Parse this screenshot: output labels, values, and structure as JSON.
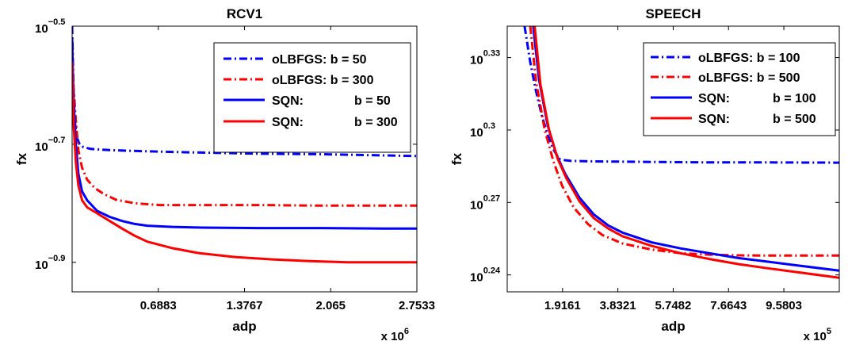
{
  "chart_data": [
    {
      "type": "line",
      "title": "RCV1",
      "xlabel": "adp",
      "ylabel": "fx",
      "x_multiplier": {
        "base": "x 10",
        "exponent": "6"
      },
      "xlim": [
        0,
        2.7533
      ],
      "ylim_log10": [
        -0.95,
        -0.5
      ],
      "log_y": true,
      "grid": false,
      "legend_position": "top-right",
      "xticks": [
        {
          "value": 0.6883,
          "label": "0.6883"
        },
        {
          "value": 1.3767,
          "label": "1.3767"
        },
        {
          "value": 2.065,
          "label": "2.065"
        },
        {
          "value": 2.7533,
          "label": "2.7533"
        }
      ],
      "yticks": [
        {
          "value_log10": -0.5,
          "base": "10",
          "exp": "−0.5"
        },
        {
          "value_log10": -0.7,
          "base": "10",
          "exp": "−0.7"
        },
        {
          "value_log10": -0.9,
          "base": "10",
          "exp": "−0.9"
        }
      ],
      "series": [
        {
          "name": "oLBFGS: b = 50",
          "legend_left": "oLBFGS: b = 50",
          "legend_right": "",
          "color": "#0000ff",
          "dash": "dashdot",
          "x": [
            0.0,
            0.01,
            0.02,
            0.04,
            0.06,
            0.09,
            0.15,
            0.3,
            0.6,
            1.0,
            1.5,
            2.0,
            2.5,
            2.7533
          ],
          "y_log10": [
            -0.5,
            -0.6,
            -0.66,
            -0.69,
            -0.7,
            -0.705,
            -0.708,
            -0.71,
            -0.712,
            -0.714,
            -0.716,
            -0.717,
            -0.719,
            -0.72
          ]
        },
        {
          "name": "oLBFGS: b = 300",
          "legend_left": "oLBFGS: b = 300",
          "legend_right": "",
          "color": "#ff0000",
          "dash": "dashdot",
          "x": [
            0.0,
            0.01,
            0.03,
            0.05,
            0.08,
            0.12,
            0.18,
            0.25,
            0.35,
            0.5,
            0.7,
            1.0,
            1.5,
            2.0,
            2.5,
            2.7533
          ],
          "y_log10": [
            -0.57,
            -0.6,
            -0.66,
            -0.71,
            -0.74,
            -0.76,
            -0.774,
            -0.784,
            -0.794,
            -0.8,
            -0.803,
            -0.803,
            -0.803,
            -0.804,
            -0.804,
            -0.804
          ]
        },
        {
          "name": "SQN: b = 50",
          "legend_left": "SQN:",
          "legend_right": "b = 50",
          "color": "#0000ff",
          "dash": "solid",
          "x": [
            0.0,
            0.01,
            0.03,
            0.05,
            0.08,
            0.12,
            0.2,
            0.3,
            0.4,
            0.5,
            0.6,
            0.8,
            1.0,
            1.5,
            2.0,
            2.5,
            2.7533
          ],
          "y_log10": [
            -0.52,
            -0.62,
            -0.7,
            -0.75,
            -0.78,
            -0.795,
            -0.813,
            -0.823,
            -0.83,
            -0.835,
            -0.838,
            -0.84,
            -0.841,
            -0.842,
            -0.842,
            -0.843,
            -0.843
          ]
        },
        {
          "name": "SQN: b = 300",
          "legend_left": "SQN:",
          "legend_right": "b = 300",
          "color": "#ff0000",
          "dash": "solid",
          "x": [
            0.0,
            0.01,
            0.03,
            0.05,
            0.08,
            0.12,
            0.2,
            0.3,
            0.4,
            0.5,
            0.6,
            0.8,
            1.0,
            1.3,
            1.6,
            1.9,
            2.2,
            2.5,
            2.7533
          ],
          "y_log10": [
            -0.56,
            -0.66,
            -0.73,
            -0.77,
            -0.795,
            -0.807,
            -0.817,
            -0.83,
            -0.843,
            -0.855,
            -0.865,
            -0.876,
            -0.884,
            -0.891,
            -0.895,
            -0.898,
            -0.9,
            -0.9,
            -0.9
          ]
        }
      ]
    },
    {
      "type": "line",
      "title": "SPEECH",
      "xlabel": "adp",
      "ylabel": "fx",
      "x_multiplier": {
        "base": "x 10",
        "exponent": "5"
      },
      "xlim": [
        0,
        11.5
      ],
      "ylim_log10": [
        0.233,
        0.343
      ],
      "log_y": true,
      "grid": false,
      "legend_position": "top-right",
      "xticks": [
        {
          "value": 1.9161,
          "label": "1.9161"
        },
        {
          "value": 3.8321,
          "label": "3.8321"
        },
        {
          "value": 5.7482,
          "label": "5.7482"
        },
        {
          "value": 7.6643,
          "label": "7.6643"
        },
        {
          "value": 9.5803,
          "label": "9.5803"
        }
      ],
      "yticks": [
        {
          "value_log10": 0.33,
          "base": "10",
          "exp": "0.33"
        },
        {
          "value_log10": 0.3,
          "base": "10",
          "exp": "0.3"
        },
        {
          "value_log10": 0.27,
          "base": "10",
          "exp": "0.27"
        },
        {
          "value_log10": 0.24,
          "base": "10",
          "exp": "0.24"
        }
      ],
      "series": [
        {
          "name": "oLBFGS: b = 100",
          "legend_left": "oLBFGS: b = 100",
          "legend_right": "",
          "color": "#0000ff",
          "dash": "dashdot",
          "x": [
            0.6,
            0.8,
            1.0,
            1.2,
            1.4,
            1.6,
            1.8,
            2.0,
            2.2,
            3.0,
            5.0,
            7.0,
            9.0,
            11.5
          ],
          "y_log10": [
            0.343,
            0.328,
            0.316,
            0.306,
            0.298,
            0.292,
            0.288,
            0.2875,
            0.2872,
            0.287,
            0.2868,
            0.2866,
            0.2866,
            0.2865
          ]
        },
        {
          "name": "oLBFGS: b = 500",
          "legend_left": "oLBFGS: b = 500",
          "legend_right": "",
          "color": "#ff0000",
          "dash": "dashdot",
          "x": [
            0.8,
            1.0,
            1.3,
            1.6,
            1.9,
            2.3,
            2.8,
            3.3,
            4.0,
            5.0,
            6.0,
            7.0,
            8.0,
            9.0,
            10.0,
            11.5
          ],
          "y_log10": [
            0.343,
            0.32,
            0.3,
            0.287,
            0.277,
            0.268,
            0.261,
            0.2565,
            0.253,
            0.2505,
            0.249,
            0.2484,
            0.2481,
            0.248,
            0.248,
            0.248
          ]
        },
        {
          "name": "SQN: b = 100",
          "legend_left": "SQN:",
          "legend_right": "b = 100",
          "color": "#0000ff",
          "dash": "solid",
          "x": [
            0.9,
            1.1,
            1.4,
            1.7,
            2.0,
            2.5,
            3.0,
            3.5,
            4.0,
            5.0,
            6.0,
            7.0,
            8.0,
            9.0,
            10.0,
            11.5
          ],
          "y_log10": [
            0.343,
            0.321,
            0.302,
            0.29,
            0.282,
            0.272,
            0.265,
            0.2605,
            0.2575,
            0.2535,
            0.251,
            0.249,
            0.247,
            0.2455,
            0.244,
            0.2418
          ]
        },
        {
          "name": "SQN: b = 500",
          "legend_left": "SQN:",
          "legend_right": "b = 500",
          "color": "#ff0000",
          "dash": "solid",
          "x": [
            0.95,
            1.15,
            1.45,
            1.75,
            2.05,
            2.5,
            3.0,
            3.5,
            4.0,
            5.0,
            6.0,
            7.0,
            8.0,
            9.0,
            10.0,
            11.5
          ],
          "y_log10": [
            0.343,
            0.319,
            0.3,
            0.288,
            0.28,
            0.2705,
            0.2635,
            0.2592,
            0.256,
            0.252,
            0.249,
            0.2466,
            0.2445,
            0.2428,
            0.2412,
            0.2388
          ]
        }
      ]
    }
  ]
}
